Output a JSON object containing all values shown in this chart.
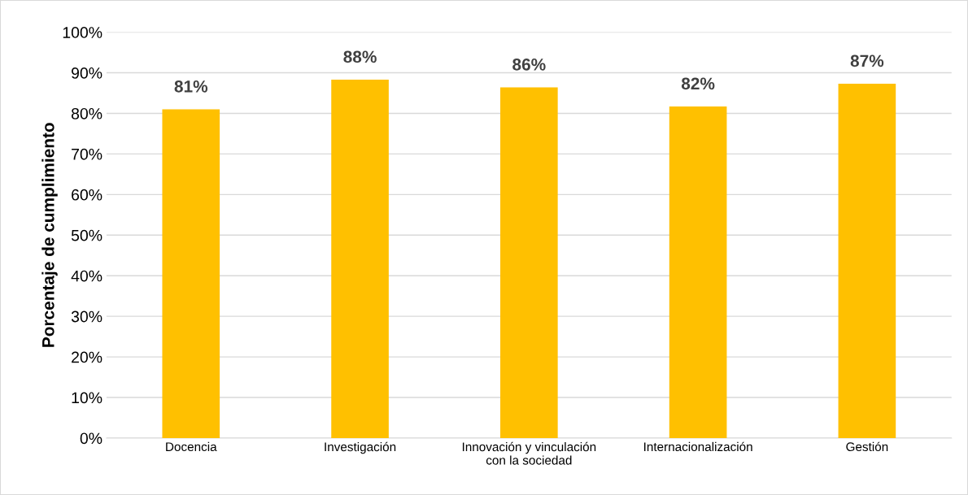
{
  "chart_data": {
    "type": "bar",
    "ylabel": "Porcentaje de cumplimiento",
    "categories": [
      "Docencia",
      "Investigación",
      "Innovación y vinculación\ncon la sociedad",
      "Internacionalización",
      "Gestión"
    ],
    "values": [
      81.0,
      88.3,
      86.4,
      81.7,
      87.3
    ],
    "value_labels": [
      "81%",
      "88%",
      "86%",
      "82%",
      "87%"
    ],
    "color": "#ffc000",
    "ylim": [
      0,
      100
    ],
    "yticks": [
      {
        "value": 0,
        "label": "0%"
      },
      {
        "value": 10,
        "label": "10%"
      },
      {
        "value": 20,
        "label": "20%"
      },
      {
        "value": 30,
        "label": "30%"
      },
      {
        "value": 40,
        "label": "40%"
      },
      {
        "value": 50,
        "label": "50%"
      },
      {
        "value": 60,
        "label": "60%"
      },
      {
        "value": 70,
        "label": "70%"
      },
      {
        "value": 80,
        "label": "80%"
      },
      {
        "value": 90,
        "label": "90%"
      },
      {
        "value": 100,
        "label": "100%"
      }
    ],
    "grid": "y",
    "legend": false
  }
}
